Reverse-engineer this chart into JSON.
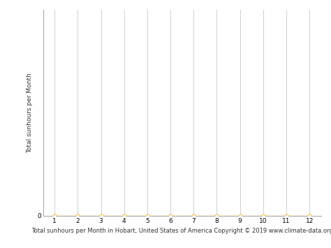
{
  "x_values": [
    1,
    2,
    3,
    4,
    5,
    6,
    7,
    8,
    9,
    10,
    11,
    12
  ],
  "y_values": [
    0,
    0,
    0,
    0,
    0,
    0,
    0,
    0,
    0,
    0,
    0,
    0
  ],
  "line_color": "#f0c040",
  "marker_color": "#f0c040",
  "marker_style": "o",
  "marker_size": 3.5,
  "marker_facecolor": "white",
  "xlabel": "Total sunhours per Month in Hobart, United States of America Copyright © 2019 www.climate-data.org",
  "ylabel": "Total sunhours per Month",
  "xlim": [
    0.5,
    12.5
  ],
  "ylim": [
    0,
    1
  ],
  "xticks": [
    1,
    2,
    3,
    4,
    5,
    6,
    7,
    8,
    9,
    10,
    11,
    12
  ],
  "yticks": [
    0
  ],
  "grid_color": "#d0d0d0",
  "background_color": "#ffffff",
  "xlabel_fontsize": 6.0,
  "ylabel_fontsize": 6.5,
  "tick_fontsize": 6.5,
  "line_width": 1.0,
  "spine_color": "#aaaaaa"
}
